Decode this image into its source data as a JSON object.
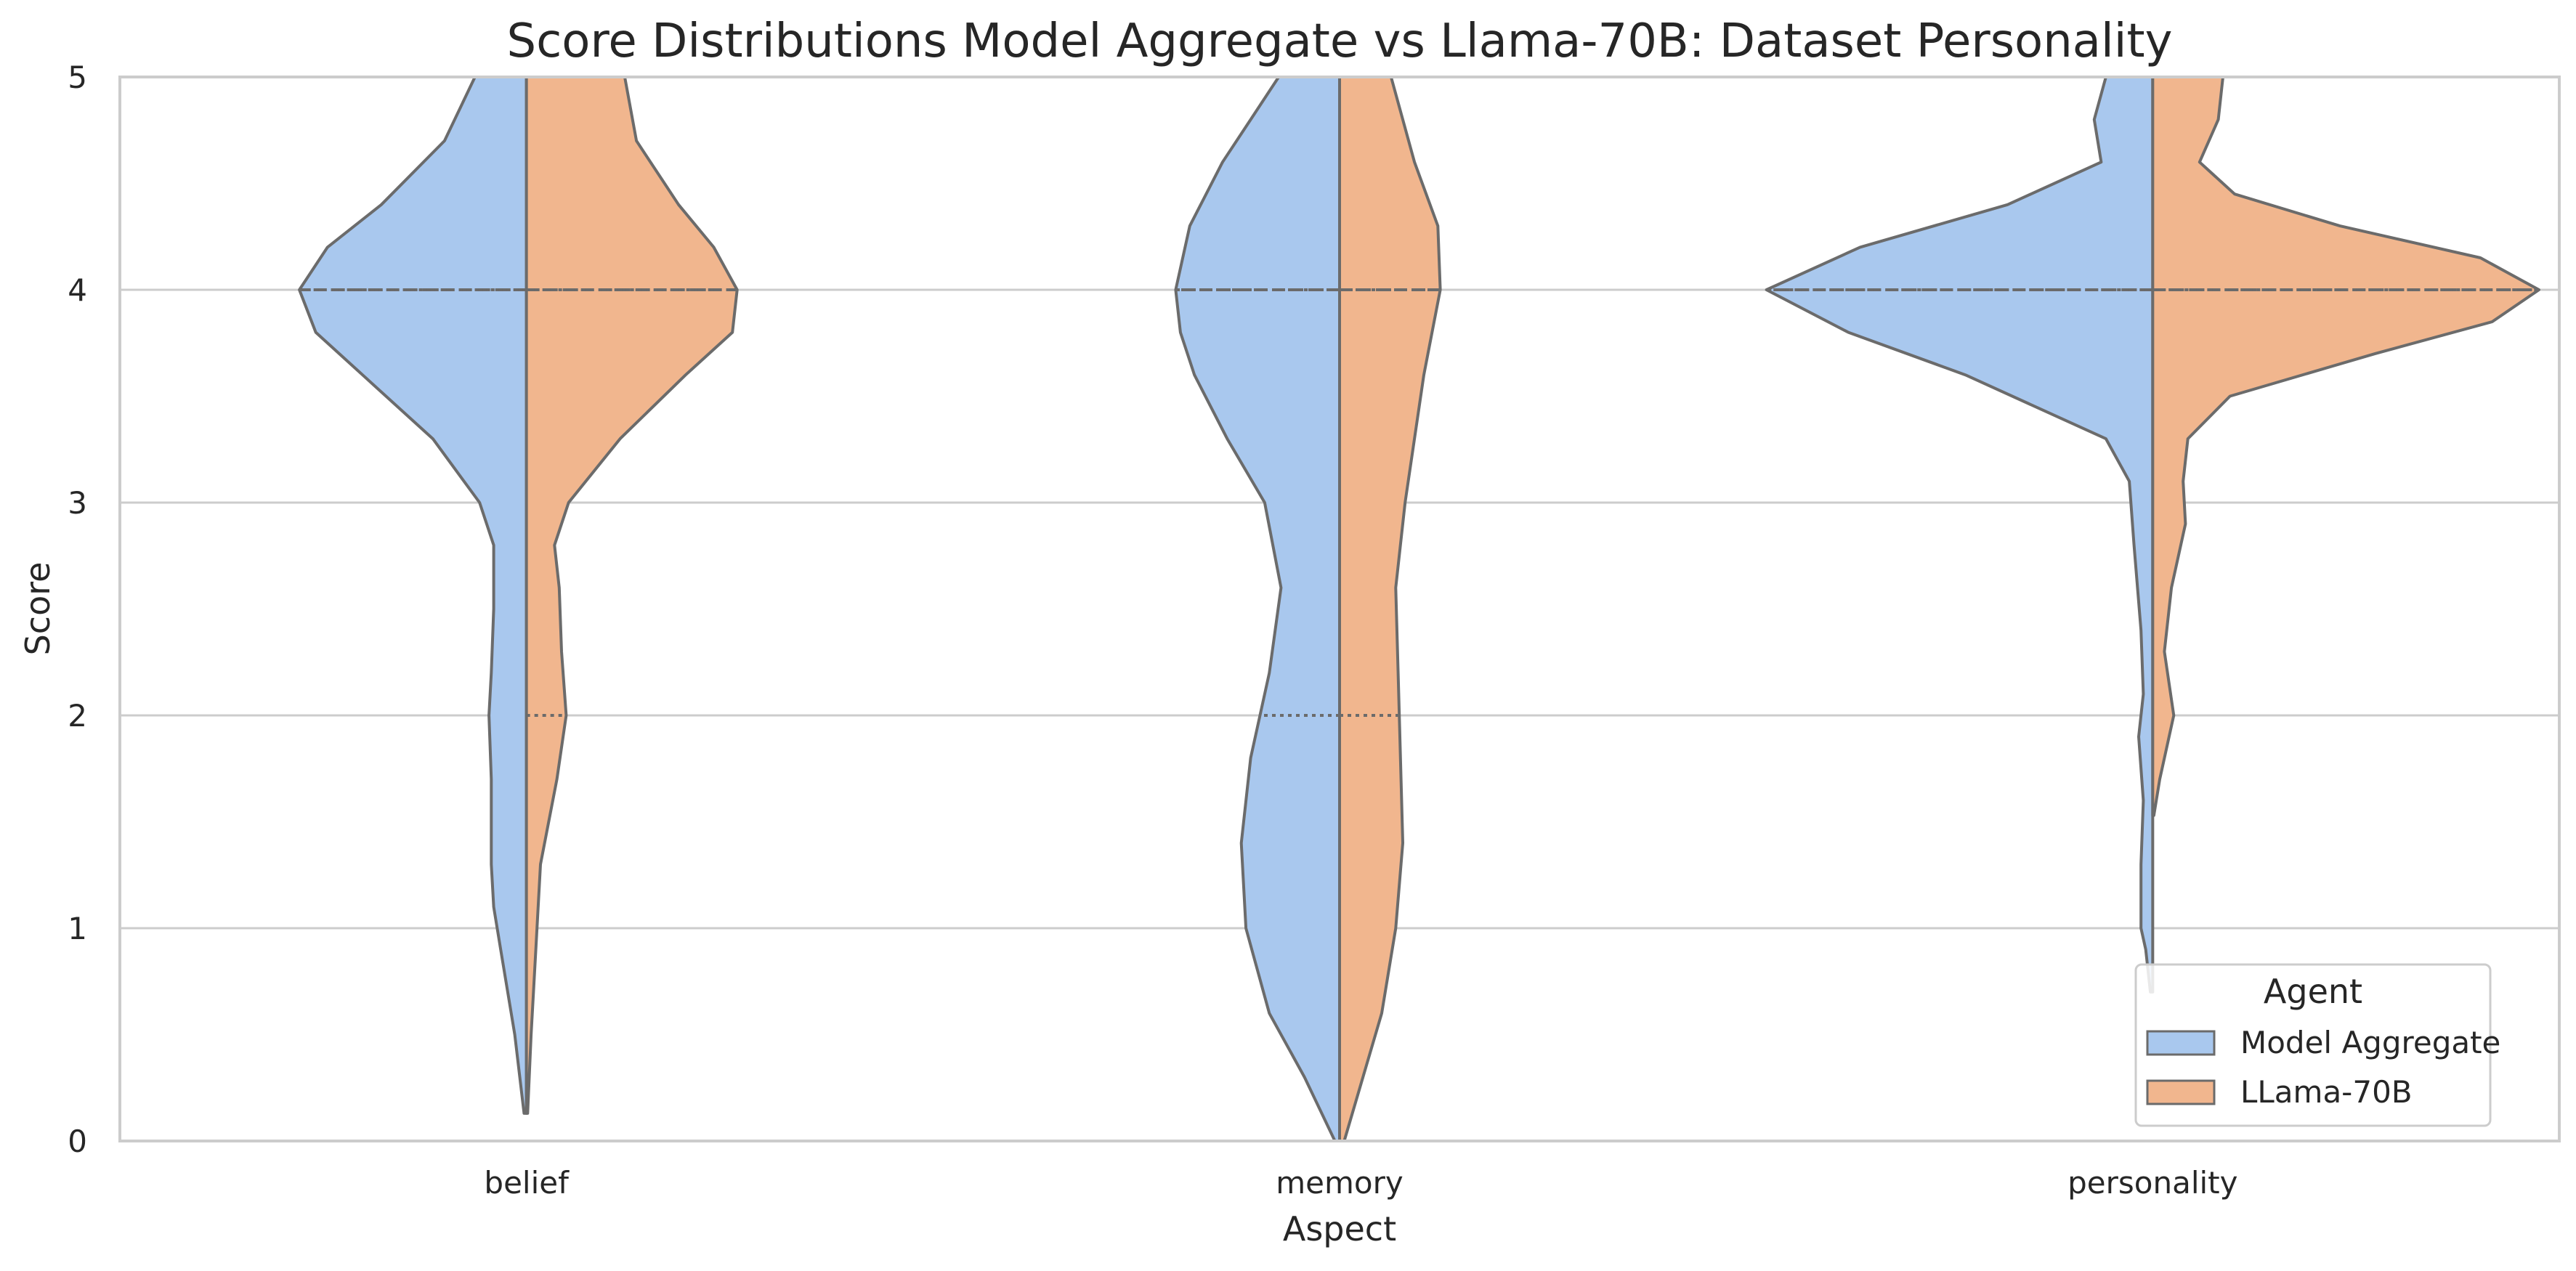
{
  "chart_data": {
    "type": "violin",
    "title": "Score Distributions Model Aggregate vs Llama-70B: Dataset Personality",
    "xlabel": "Aspect",
    "ylabel": "Score",
    "ylim": [
      0,
      5
    ],
    "yticks": [
      "0",
      "1",
      "2",
      "3",
      "4",
      "5"
    ],
    "categories": [
      "belief",
      "memory",
      "personality"
    ],
    "grid": true,
    "split": true,
    "inner": "quartile",
    "legend": {
      "title": "Agent",
      "placement": "lower-right"
    },
    "series": [
      {
        "name": "Model Aggregate",
        "color": "#a9c8ee",
        "side": "left",
        "groups": [
          {
            "category": "belief",
            "quartiles": [
              4,
              4,
              4
            ],
            "density": [
              [
                0.13,
                0.01
              ],
              [
                0.5,
                0.05
              ],
              [
                0.9,
                0.11
              ],
              [
                1.1,
                0.14
              ],
              [
                1.3,
                0.15
              ],
              [
                1.7,
                0.15
              ],
              [
                2.0,
                0.16
              ],
              [
                2.2,
                0.15
              ],
              [
                2.5,
                0.14
              ],
              [
                2.8,
                0.14
              ],
              [
                3.0,
                0.2
              ],
              [
                3.3,
                0.4
              ],
              [
                3.6,
                0.7
              ],
              [
                3.8,
                0.9
              ],
              [
                4.0,
                0.97
              ],
              [
                4.2,
                0.85
              ],
              [
                4.4,
                0.62
              ],
              [
                4.7,
                0.35
              ],
              [
                5.0,
                0.22
              ]
            ]
          },
          {
            "category": "memory",
            "quartiles": [
              2,
              4,
              4
            ],
            "density": [
              [
                0.0,
                0.02
              ],
              [
                0.3,
                0.15
              ],
              [
                0.6,
                0.3
              ],
              [
                1.0,
                0.4
              ],
              [
                1.4,
                0.42
              ],
              [
                1.8,
                0.38
              ],
              [
                2.2,
                0.3
              ],
              [
                2.6,
                0.25
              ],
              [
                3.0,
                0.32
              ],
              [
                3.3,
                0.48
              ],
              [
                3.6,
                0.62
              ],
              [
                3.8,
                0.68
              ],
              [
                4.0,
                0.7
              ],
              [
                4.3,
                0.64
              ],
              [
                4.6,
                0.5
              ],
              [
                4.8,
                0.38
              ],
              [
                5.0,
                0.26
              ]
            ]
          },
          {
            "category": "personality",
            "quartiles": [
              4,
              4,
              4
            ],
            "density": [
              [
                0.7,
                0.01
              ],
              [
                0.9,
                0.03
              ],
              [
                1.0,
                0.05
              ],
              [
                1.3,
                0.05
              ],
              [
                1.6,
                0.04
              ],
              [
                1.9,
                0.06
              ],
              [
                2.1,
                0.04
              ],
              [
                2.4,
                0.05
              ],
              [
                2.8,
                0.08
              ],
              [
                3.1,
                0.1
              ],
              [
                3.3,
                0.2
              ],
              [
                3.6,
                0.8
              ],
              [
                3.8,
                1.3
              ],
              [
                4.0,
                1.65
              ],
              [
                4.2,
                1.25
              ],
              [
                4.4,
                0.62
              ],
              [
                4.6,
                0.22
              ],
              [
                4.8,
                0.25
              ],
              [
                5.0,
                0.2
              ]
            ]
          }
        ]
      },
      {
        "name": "LLama-70B",
        "color": "#f1b68e",
        "side": "right",
        "groups": [
          {
            "category": "belief",
            "quartiles": [
              2,
              4,
              4
            ],
            "density": [
              [
                0.13,
                0.005
              ],
              [
                0.5,
                0.02
              ],
              [
                0.9,
                0.04
              ],
              [
                1.3,
                0.06
              ],
              [
                1.7,
                0.13
              ],
              [
                2.0,
                0.17
              ],
              [
                2.3,
                0.15
              ],
              [
                2.6,
                0.14
              ],
              [
                2.8,
                0.12
              ],
              [
                3.0,
                0.18
              ],
              [
                3.3,
                0.4
              ],
              [
                3.6,
                0.68
              ],
              [
                3.8,
                0.88
              ],
              [
                4.0,
                0.9
              ],
              [
                4.2,
                0.8
              ],
              [
                4.4,
                0.65
              ],
              [
                4.7,
                0.47
              ],
              [
                5.0,
                0.42
              ]
            ]
          },
          {
            "category": "memory",
            "quartiles": [
              2,
              4,
              4
            ],
            "density": [
              [
                0.0,
                0.02
              ],
              [
                0.3,
                0.1
              ],
              [
                0.6,
                0.18
              ],
              [
                1.0,
                0.24
              ],
              [
                1.4,
                0.27
              ],
              [
                1.8,
                0.26
              ],
              [
                2.2,
                0.25
              ],
              [
                2.6,
                0.24
              ],
              [
                3.0,
                0.28
              ],
              [
                3.3,
                0.32
              ],
              [
                3.6,
                0.36
              ],
              [
                4.0,
                0.43
              ],
              [
                4.3,
                0.42
              ],
              [
                4.6,
                0.32
              ],
              [
                5.0,
                0.22
              ]
            ]
          },
          {
            "category": "personality",
            "quartiles": [
              4,
              4,
              4
            ],
            "density": [
              [
                1.53,
                0.005
              ],
              [
                1.7,
                0.03
              ],
              [
                2.0,
                0.09
              ],
              [
                2.3,
                0.05
              ],
              [
                2.6,
                0.08
              ],
              [
                2.9,
                0.14
              ],
              [
                3.1,
                0.13
              ],
              [
                3.3,
                0.15
              ],
              [
                3.5,
                0.33
              ],
              [
                3.7,
                0.95
              ],
              [
                3.85,
                1.45
              ],
              [
                4.0,
                1.65
              ],
              [
                4.15,
                1.4
              ],
              [
                4.3,
                0.8
              ],
              [
                4.45,
                0.35
              ],
              [
                4.6,
                0.2
              ],
              [
                4.8,
                0.28
              ],
              [
                5.0,
                0.3
              ]
            ]
          }
        ]
      }
    ]
  }
}
